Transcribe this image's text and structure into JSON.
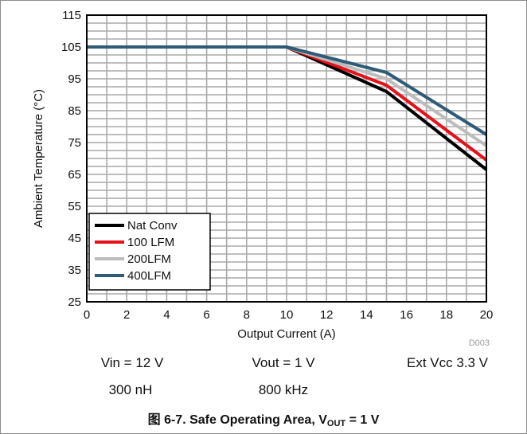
{
  "chart_data": {
    "type": "line",
    "title": "",
    "xlabel": "Output Current (A)",
    "ylabel": "Ambient Temperature (°C)",
    "xlim": [
      0,
      20
    ],
    "ylim": [
      25,
      115
    ],
    "xticks": [
      "0",
      "2",
      "4",
      "6",
      "8",
      "10",
      "12",
      "14",
      "16",
      "18",
      "20"
    ],
    "yticks": [
      "25",
      "35",
      "45",
      "55",
      "65",
      "75",
      "85",
      "95",
      "105",
      "115"
    ],
    "grid": true,
    "legend_position": "bottom-left",
    "watermark": "D003",
    "series": [
      {
        "name": "Nat Conv",
        "color": "#000000",
        "x": [
          0,
          10,
          15,
          20
        ],
        "y": [
          105,
          105,
          91,
          66.5
        ]
      },
      {
        "name": "100 LFM",
        "color": "#e8101a",
        "x": [
          0,
          10,
          15,
          20
        ],
        "y": [
          105,
          105,
          93,
          69.5
        ]
      },
      {
        "name": "200LFM",
        "color": "#bcbcbc",
        "x": [
          0,
          10,
          15,
          20
        ],
        "y": [
          105,
          105,
          95,
          74
        ]
      },
      {
        "name": "400LFM",
        "color": "#2f5b76",
        "x": [
          0,
          10,
          15,
          20
        ],
        "y": [
          105,
          105,
          97,
          77.5
        ]
      }
    ]
  },
  "notes": {
    "vin": "Vin = 12 V",
    "vout": "Vout = 1 V",
    "extvcc": "Ext Vcc 3.3 V",
    "inductance": "300 nH",
    "frequency": "800 kHz"
  },
  "caption": {
    "prefix": "图 6-7. Safe Operating Area, V",
    "sub": "OUT",
    "suffix": " = 1 V"
  }
}
